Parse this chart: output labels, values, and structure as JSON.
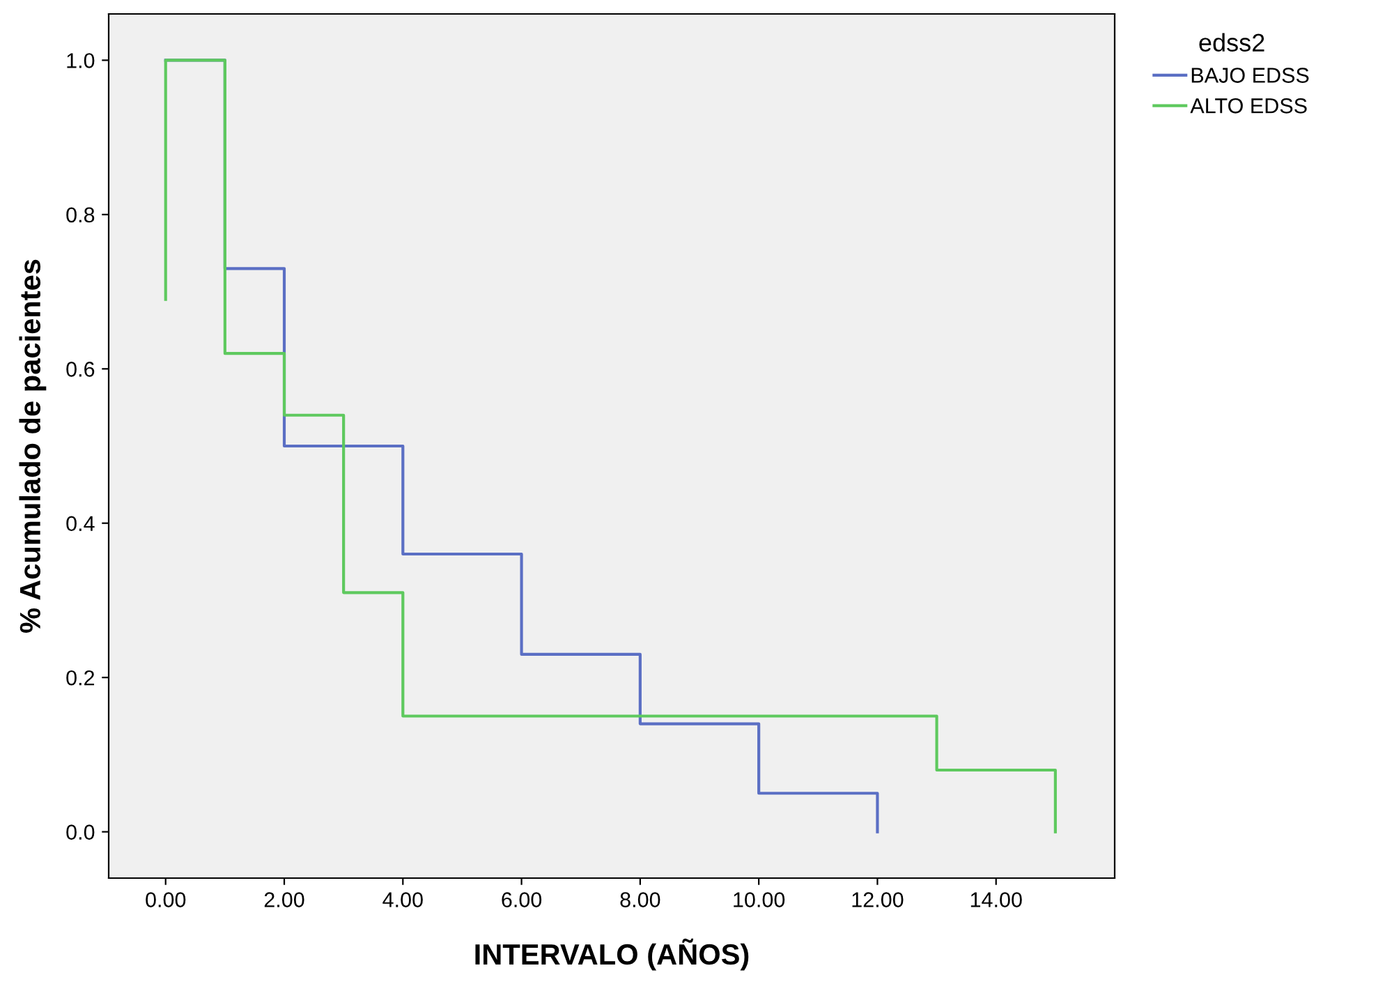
{
  "chart_data": {
    "type": "step",
    "xlabel": "INTERVALO (AÑOS)",
    "ylabel": "% Acumulado de pacientes",
    "legend_title": "edss2",
    "series": [
      {
        "name": "BAJO EDSS",
        "color": "#5b6fc4",
        "x": [
          0,
          1,
          2,
          4,
          6,
          8,
          10,
          12
        ],
        "values": [
          1.0,
          0.73,
          0.5,
          0.36,
          0.23,
          0.14,
          0.05,
          0
        ]
      },
      {
        "name": "ALTO EDSS",
        "color": "#5ec95e",
        "x": [
          0,
          0,
          1,
          2,
          3,
          4,
          13,
          15
        ],
        "values": [
          0.69,
          1.0,
          0.62,
          0.54,
          0.31,
          0.15,
          0.08,
          0
        ]
      }
    ],
    "xlim": [
      -0.96,
      16
    ],
    "ylim": [
      -0.06,
      1.06
    ],
    "xticks": [
      {
        "value": 0,
        "label": "0.00"
      },
      {
        "value": 2,
        "label": "2.00"
      },
      {
        "value": 4,
        "label": "4.00"
      },
      {
        "value": 6,
        "label": "6.00"
      },
      {
        "value": 8,
        "label": "8.00"
      },
      {
        "value": 10,
        "label": "10.00"
      },
      {
        "value": 12,
        "label": "12.00"
      },
      {
        "value": 14,
        "label": "14.00"
      }
    ],
    "yticks": [
      {
        "value": 0,
        "label": "0.0"
      },
      {
        "value": 0.2,
        "label": "0.2"
      },
      {
        "value": 0.4,
        "label": "0.4"
      },
      {
        "value": 0.6,
        "label": "0.6"
      },
      {
        "value": 0.8,
        "label": "0.8"
      },
      {
        "value": 1.0,
        "label": "1.0"
      }
    ],
    "grid": false,
    "legend": "top right"
  }
}
